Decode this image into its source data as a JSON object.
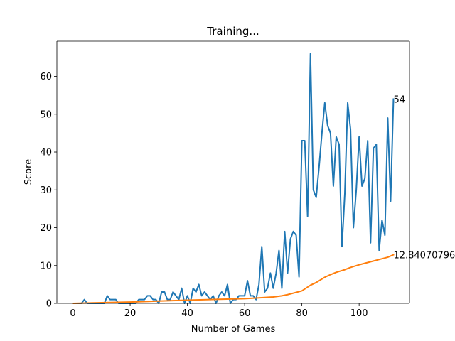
{
  "chart_data": {
    "type": "line",
    "title": "Training...",
    "xlabel": "Number of Games",
    "ylabel": "Score",
    "xlim": [
      -5.6,
      117.6
    ],
    "ylim": [
      0,
      69.3
    ],
    "xticks": [
      0,
      20,
      40,
      60,
      80,
      100
    ],
    "yticks": [
      0,
      10,
      20,
      30,
      40,
      50,
      60
    ],
    "grid": false,
    "legend": "none",
    "series": [
      {
        "color": "#1f77b4",
        "x": [
          0,
          1,
          2,
          3,
          4,
          5,
          6,
          7,
          8,
          9,
          10,
          11,
          12,
          13,
          14,
          15,
          16,
          17,
          18,
          19,
          20,
          21,
          22,
          23,
          24,
          25,
          26,
          27,
          28,
          29,
          30,
          31,
          32,
          33,
          34,
          35,
          36,
          37,
          38,
          39,
          40,
          41,
          42,
          43,
          44,
          45,
          46,
          47,
          48,
          49,
          50,
          51,
          52,
          53,
          54,
          55,
          56,
          57,
          58,
          59,
          60,
          61,
          62,
          63,
          64,
          65,
          66,
          67,
          68,
          69,
          70,
          71,
          72,
          73,
          74,
          75,
          76,
          77,
          78,
          79,
          80,
          81,
          82,
          83,
          84,
          85,
          86,
          87,
          88,
          89,
          90,
          91,
          92,
          93,
          94,
          95,
          96,
          97,
          98,
          99,
          100,
          101,
          102,
          103,
          104,
          105,
          106,
          107,
          108,
          109,
          110,
          111,
          112
        ],
        "values": [
          0,
          0,
          0,
          0,
          1,
          0,
          0,
          0,
          0,
          0,
          0,
          0,
          2,
          1,
          1,
          1,
          0,
          0,
          0,
          0,
          0,
          0,
          0,
          1,
          1,
          1,
          2,
          2,
          1,
          1,
          0,
          3,
          3,
          1,
          1,
          3,
          2,
          1,
          4,
          0,
          2,
          0,
          4,
          3,
          5,
          2,
          3,
          2,
          1,
          2,
          0,
          2,
          3,
          2,
          5,
          0,
          1,
          1,
          2,
          2,
          2,
          6,
          2,
          2,
          1,
          5,
          15,
          3,
          4,
          8,
          4,
          8,
          14,
          4,
          19,
          8,
          17,
          19,
          18,
          7,
          43,
          43,
          23,
          66,
          30,
          28,
          36,
          45,
          53,
          47,
          45,
          31,
          44,
          42,
          15,
          29,
          53,
          46,
          20,
          30,
          44,
          31,
          33,
          43,
          16,
          41,
          42,
          14,
          22,
          18,
          49,
          27,
          54
        ]
      },
      {
        "color": "#ff7f0e",
        "x": [
          0,
          10,
          20,
          30,
          40,
          50,
          55,
          60,
          65,
          70,
          73,
          75,
          80,
          83,
          85,
          88,
          90,
          92,
          95,
          97,
          100,
          103,
          105,
          108,
          110,
          112
        ],
        "values": [
          0,
          0.2,
          0.35,
          0.6,
          0.85,
          1.05,
          1.15,
          1.25,
          1.45,
          1.7,
          2.0,
          2.3,
          3.3,
          4.8,
          5.5,
          6.9,
          7.6,
          8.2,
          8.9,
          9.5,
          10.2,
          10.8,
          11.2,
          11.8,
          12.2,
          12.84
        ]
      }
    ],
    "annotations": [
      {
        "x": 112,
        "y": 54,
        "text": "54"
      },
      {
        "x": 112,
        "y": 12.84,
        "text": "12.84070796"
      }
    ]
  }
}
